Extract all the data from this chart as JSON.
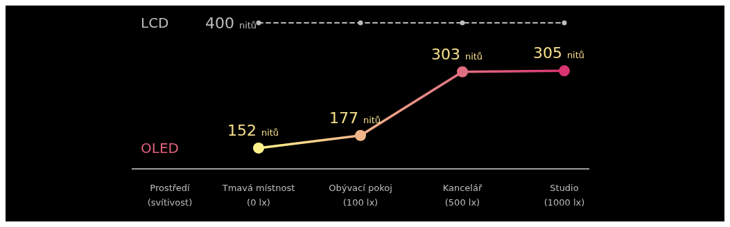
{
  "chart_data": {
    "type": "line",
    "xlabel": "Prostředí\n(svítivost)",
    "categories": [
      "Tmavá místnost\n(0 lx)",
      "Obývací pokoj\n(100 lx)",
      "Kancelář\n(500 lx)",
      "Studio\n(1000 lx)"
    ],
    "marker": "circle",
    "grid": false,
    "legend": false,
    "series": [
      {
        "name": "LCD",
        "color": "#bdbdbd",
        "line_style": "dashed",
        "values": [
          400,
          400,
          400,
          400
        ],
        "value_labels": [
          "400 nitů",
          null,
          null,
          null
        ]
      },
      {
        "name": "OLED",
        "color": "#e0607a",
        "colors": [
          "#fff38a",
          "#f2b48a",
          "#e06f82",
          "#d9346f"
        ],
        "line_style": "solid",
        "values": [
          152,
          177,
          303,
          305
        ],
        "value_labels": [
          "152 nitů",
          "177 nitů",
          "303 nitů",
          "305 nitů"
        ]
      }
    ]
  }
}
